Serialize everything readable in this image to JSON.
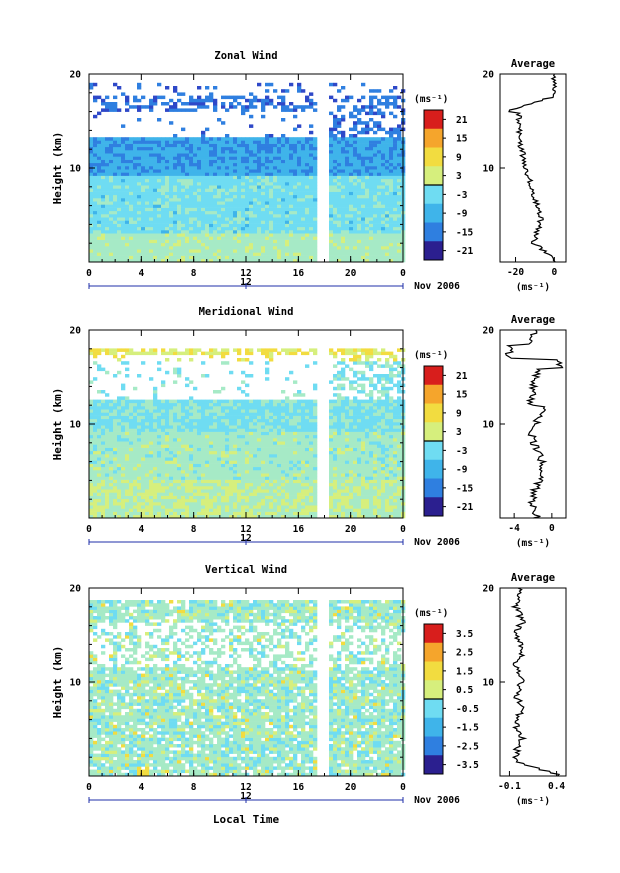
{
  "chart_data": [
    {
      "type": "heatmap",
      "title": "Zonal Wind",
      "ylabel": "Height (km)",
      "ylim": [
        0,
        20
      ],
      "yticks": [
        "20",
        "10"
      ],
      "xticks": [
        "0",
        "4",
        "8",
        "12",
        "16",
        "20",
        "0"
      ],
      "date_ticks": [
        "12"
      ],
      "date_label": "Nov 2006",
      "colorbar": {
        "label": "(ms⁻¹)",
        "ticks": [
          "21",
          "15",
          "9",
          "3",
          "-3",
          "-9",
          "-15",
          "-21"
        ],
        "range": [
          -24,
          24
        ]
      },
      "average_profile": {
        "title": "Average",
        "xticks": [
          "-20",
          "0"
        ],
        "xlabel": "(ms⁻¹)",
        "xlim": [
          -28,
          6
        ]
      }
    },
    {
      "type": "heatmap",
      "title": "Meridional Wind",
      "ylabel": "Height (km)",
      "ylim": [
        0,
        20
      ],
      "yticks": [
        "20",
        "10"
      ],
      "xticks": [
        "0",
        "4",
        "8",
        "12",
        "16",
        "20",
        "0"
      ],
      "date_ticks": [
        "12"
      ],
      "date_label": "Nov 2006",
      "colorbar": {
        "label": "(ms⁻¹)",
        "ticks": [
          "21",
          "15",
          "9",
          "3",
          "-3",
          "-9",
          "-15",
          "-21"
        ],
        "range": [
          -24,
          24
        ]
      },
      "average_profile": {
        "title": "Average",
        "xticks": [
          "-4",
          "0"
        ],
        "xlabel": "(ms⁻¹)",
        "xlim": [
          -5.5,
          1.5
        ]
      }
    },
    {
      "type": "heatmap",
      "title": "Vertical Wind",
      "ylabel": "Height (km)",
      "xlabel": "Local Time",
      "ylim": [
        0,
        20
      ],
      "yticks": [
        "20",
        "10"
      ],
      "xticks": [
        "0",
        "4",
        "8",
        "12",
        "16",
        "20",
        "0"
      ],
      "date_ticks": [
        "12"
      ],
      "date_label": "Nov 2006",
      "colorbar": {
        "label": "(ms⁻¹)",
        "ticks": [
          "3.5",
          "2.5",
          "1.5",
          "0.5",
          "-0.5",
          "-1.5",
          "-2.5",
          "-3.5"
        ],
        "range": [
          -4,
          4
        ]
      },
      "average_profile": {
        "title": "Average",
        "xticks": [
          "-0.1",
          "0.4"
        ],
        "xlabel": "(ms⁻¹)",
        "xlim": [
          -0.2,
          0.5
        ]
      }
    }
  ]
}
